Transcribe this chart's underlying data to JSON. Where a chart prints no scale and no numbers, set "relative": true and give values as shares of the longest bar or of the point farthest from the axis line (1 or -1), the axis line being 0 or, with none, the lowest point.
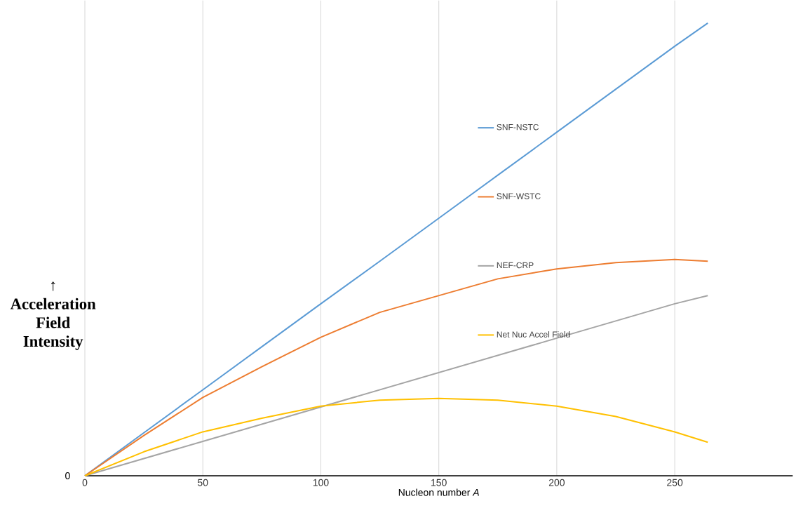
{
  "chart_data": {
    "type": "line",
    "relative": true,
    "xlabel": "Nucleon number *A*",
    "ylabel": "↑ Acceleration Field Intensity",
    "x": [
      0,
      25,
      50,
      75,
      100,
      125,
      150,
      175,
      200,
      225,
      250,
      264
    ],
    "xlim": [
      0,
      300
    ],
    "xticks": [
      0,
      50,
      100,
      150,
      200,
      250
    ],
    "grid": true,
    "legend": "right",
    "annotations": [
      {
        "text": "0",
        "x": 0,
        "y": 0
      }
    ],
    "series": [
      {
        "name": "SNF-NSTC",
        "color": "#5b9bd5",
        "values": [
          0,
          0.095,
          0.19,
          0.285,
          0.38,
          0.474,
          0.569,
          0.664,
          0.759,
          0.854,
          0.949,
          1
        ]
      },
      {
        "name": "SNF-WSTC",
        "color": "#ed7d31",
        "values": [
          0,
          0.089,
          0.173,
          0.241,
          0.306,
          0.361,
          0.398,
          0.435,
          0.457,
          0.471,
          0.478,
          0.474
        ]
      },
      {
        "name": "NEF-CRP",
        "color": "#a5a5a5",
        "values": [
          0,
          0.038,
          0.076,
          0.114,
          0.152,
          0.19,
          0.228,
          0.266,
          0.304,
          0.342,
          0.38,
          0.398
        ]
      },
      {
        "name": "Net Nuc Accel Field",
        "color": "#ffc000",
        "values": [
          0,
          0.053,
          0.097,
          0.127,
          0.154,
          0.167,
          0.171,
          0.167,
          0.154,
          0.131,
          0.097,
          0.074
        ]
      }
    ]
  }
}
